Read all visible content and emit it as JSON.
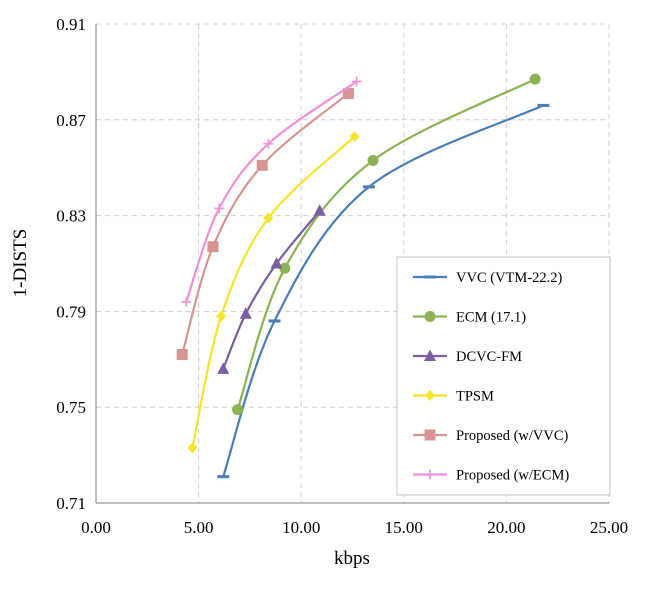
{
  "chart_data": {
    "type": "line",
    "title": "",
    "xlabel": "kbps",
    "ylabel": "1-DISTS",
    "xlim": [
      0,
      25
    ],
    "ylim": [
      0.71,
      0.91
    ],
    "x_ticks": [
      "0.00",
      "5.00",
      "10.00",
      "15.00",
      "20.00",
      "25.00"
    ],
    "y_ticks": [
      "0.71",
      "0.75",
      "0.79",
      "0.83",
      "0.87",
      "0.91"
    ],
    "x_tick_values": [
      0,
      5,
      10,
      15,
      20,
      25
    ],
    "y_tick_values": [
      0.71,
      0.75,
      0.79,
      0.83,
      0.87,
      0.91
    ],
    "grid": true,
    "legend_position": "bottom-right",
    "series": [
      {
        "name": "VVC (VTM-22.2)",
        "color": "#4a7ebb",
        "marker": "dash",
        "points": [
          [
            6.2,
            0.721
          ],
          [
            8.7,
            0.786
          ],
          [
            13.3,
            0.842
          ],
          [
            21.8,
            0.876
          ]
        ]
      },
      {
        "name": "ECM (17.1)",
        "color": "#8cb453",
        "marker": "circle",
        "points": [
          [
            6.9,
            0.749
          ],
          [
            9.2,
            0.808
          ],
          [
            13.5,
            0.853
          ],
          [
            21.4,
            0.887
          ]
        ]
      },
      {
        "name": "DCVC-FM",
        "color": "#7a5fa0",
        "marker": "triangle",
        "points": [
          [
            6.2,
            0.766
          ],
          [
            7.3,
            0.789
          ],
          [
            8.8,
            0.81
          ],
          [
            10.9,
            0.832
          ]
        ]
      },
      {
        "name": "TPSM",
        "color": "#f5e42a",
        "marker": "diamond",
        "points": [
          [
            4.7,
            0.733
          ],
          [
            6.1,
            0.788
          ],
          [
            8.4,
            0.829
          ],
          [
            12.6,
            0.863
          ]
        ]
      },
      {
        "name": "Proposed (w/VVC)",
        "color": "#d69593",
        "marker": "square",
        "points": [
          [
            4.2,
            0.772
          ],
          [
            5.7,
            0.817
          ],
          [
            8.1,
            0.851
          ],
          [
            12.3,
            0.881
          ]
        ]
      },
      {
        "name": "Proposed (w/ECM)",
        "color": "#f090d8",
        "marker": "plus",
        "points": [
          [
            4.4,
            0.794
          ],
          [
            6.0,
            0.833
          ],
          [
            8.4,
            0.86
          ],
          [
            12.7,
            0.886
          ]
        ]
      }
    ]
  }
}
